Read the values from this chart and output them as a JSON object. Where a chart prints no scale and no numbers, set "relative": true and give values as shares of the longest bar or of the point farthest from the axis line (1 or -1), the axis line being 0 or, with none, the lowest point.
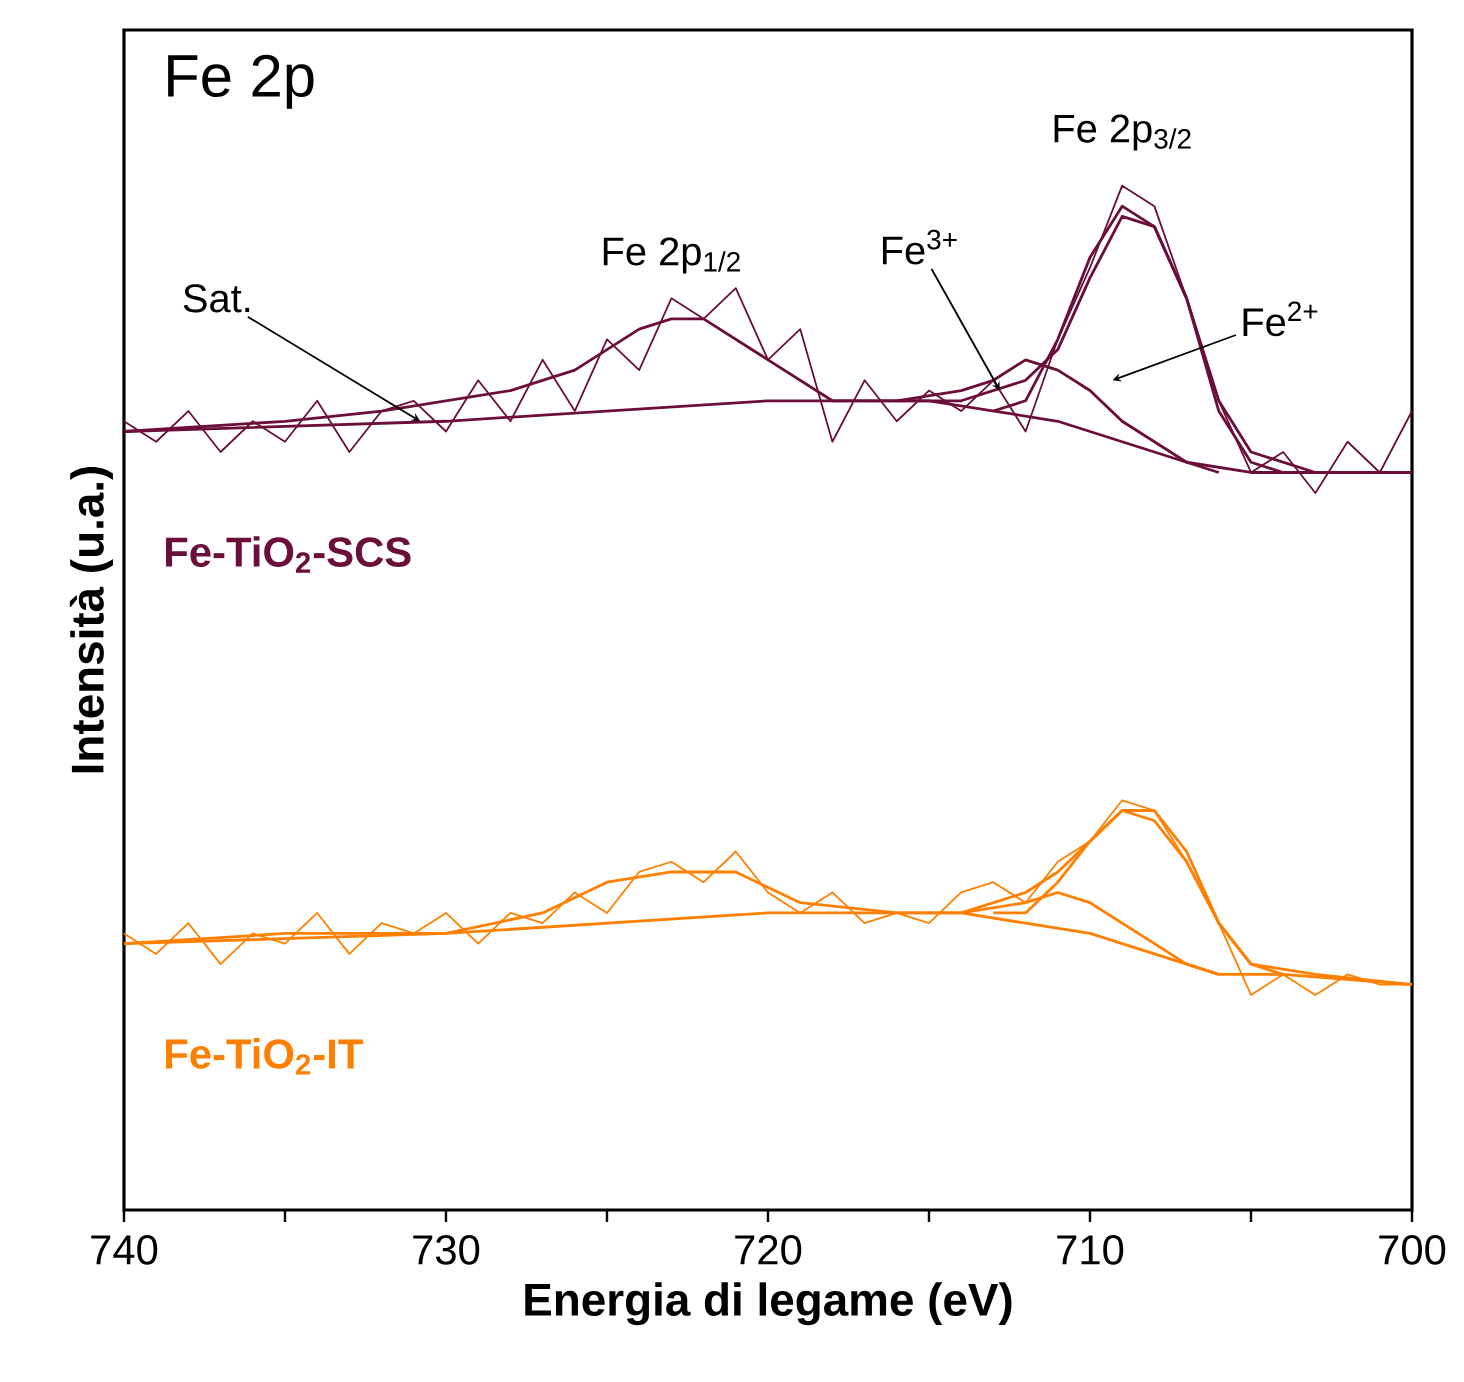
{
  "chart_data": {
    "type": "line",
    "relative": true,
    "xlabel": "Energia di legame (eV)",
    "ylabel": "Intensità (u.a.)",
    "xlim": [
      740,
      700
    ],
    "xticks": [
      740,
      {
        "value": 735,
        "label": null
      },
      730,
      {
        "value": 725,
        "label": null
      },
      720,
      {
        "value": 715,
        "label": null
      },
      710,
      {
        "value": 705,
        "label": null
      },
      700
    ],
    "annotations": [
      "Fe 2p",
      {
        "text": "Sat.",
        "x": 730.8,
        "y": 0.77
      },
      {
        "text": "Fe 2p$_{1/2}$",
        "x": 723,
        "y": 0.89
      },
      {
        "text": "Fe$^{3+}$",
        "x": 712.8,
        "y": 0.8
      },
      {
        "text": "Fe 2p$_{3/2}$",
        "x": 709,
        "y": 1.0
      },
      "Fe$^{2+}$"
    ],
    "series": [
      {
        "name": "Fe-TiO$_{2}$-SCS",
        "color": "#6b0f3a",
        "x": [
          740,
          739,
          738,
          737,
          736,
          735,
          734,
          733,
          732,
          731,
          730,
          729,
          728,
          727,
          726,
          725,
          724,
          723,
          722,
          721,
          720,
          719,
          718,
          717,
          716,
          715,
          714,
          713,
          712,
          711,
          710,
          709,
          708,
          707,
          706,
          705,
          704,
          703,
          702,
          701,
          700
        ],
        "values": [
          0.77,
          0.75,
          0.78,
          0.74,
          0.77,
          0.75,
          0.79,
          0.74,
          0.78,
          0.79,
          0.76,
          0.81,
          0.77,
          0.83,
          0.78,
          0.85,
          0.82,
          0.89,
          0.87,
          0.9,
          0.83,
          0.86,
          0.75,
          0.81,
          0.77,
          0.8,
          0.78,
          0.81,
          0.76,
          0.85,
          0.92,
          1.0,
          0.98,
          0.89,
          0.79,
          0.72,
          0.74,
          0.7,
          0.75,
          0.72,
          0.78
        ]
      },
      {
        "color": "#6b0f3a",
        "x": [
          740,
          735,
          732,
          730,
          728,
          726,
          724,
          723,
          722,
          720,
          718,
          716,
          714,
          712,
          711,
          710,
          709,
          708,
          707,
          706,
          705,
          703,
          700
        ],
        "values": [
          0.76,
          0.77,
          0.78,
          0.79,
          0.8,
          0.82,
          0.86,
          0.87,
          0.87,
          0.83,
          0.79,
          0.79,
          0.79,
          0.81,
          0.84,
          0.91,
          0.97,
          0.96,
          0.89,
          0.79,
          0.74,
          0.72,
          0.72
        ]
      },
      {
        "color": "#6b0f3a",
        "x": [
          740,
          730,
          720,
          715,
          713,
          711,
          709,
          707,
          705,
          700
        ],
        "values": [
          0.76,
          0.77,
          0.79,
          0.79,
          0.78,
          0.77,
          0.75,
          0.73,
          0.72,
          0.72
        ]
      },
      {
        "color": "#6b0f3a",
        "x": [
          716,
          714,
          713,
          712,
          711,
          710,
          709,
          708,
          707,
          706
        ],
        "values": [
          0.79,
          0.8,
          0.81,
          0.83,
          0.82,
          0.8,
          0.77,
          0.75,
          0.73,
          0.72
        ]
      },
      {
        "color": "#6b0f3a",
        "x": [
          713,
          712,
          711,
          710,
          709,
          708,
          707,
          706,
          705,
          704
        ],
        "values": [
          0.78,
          0.79,
          0.85,
          0.93,
          0.98,
          0.96,
          0.89,
          0.78,
          0.73,
          0.72
        ]
      },
      {
        "name": "Fe-TiO$_{2}$-IT",
        "color": "#ff8000",
        "x": [
          740,
          739,
          738,
          737,
          736,
          735,
          734,
          733,
          732,
          731,
          730,
          729,
          728,
          727,
          726,
          725,
          724,
          723,
          722,
          721,
          720,
          719,
          718,
          717,
          716,
          715,
          714,
          713,
          712,
          711,
          710,
          709,
          708,
          707,
          706,
          705,
          704,
          703,
          702,
          701,
          700
        ],
        "values": [
          0.27,
          0.25,
          0.28,
          0.24,
          0.27,
          0.26,
          0.29,
          0.25,
          0.28,
          0.27,
          0.29,
          0.26,
          0.29,
          0.28,
          0.31,
          0.29,
          0.33,
          0.34,
          0.32,
          0.35,
          0.31,
          0.29,
          0.31,
          0.28,
          0.29,
          0.28,
          0.31,
          0.32,
          0.3,
          0.34,
          0.36,
          0.4,
          0.39,
          0.34,
          0.28,
          0.21,
          0.23,
          0.21,
          0.23,
          0.22,
          0.22
        ]
      },
      {
        "color": "#ff8000",
        "x": [
          740,
          735,
          730,
          727,
          725,
          723,
          721,
          719,
          716,
          714,
          712,
          711,
          710,
          709,
          708,
          707,
          706,
          705,
          703,
          700
        ],
        "values": [
          0.26,
          0.27,
          0.27,
          0.29,
          0.32,
          0.33,
          0.33,
          0.3,
          0.29,
          0.29,
          0.31,
          0.33,
          0.36,
          0.39,
          0.39,
          0.35,
          0.28,
          0.24,
          0.23,
          0.22
        ]
      },
      {
        "color": "#ff8000",
        "x": [
          740,
          730,
          720,
          714,
          712,
          710,
          708,
          706,
          704,
          700
        ],
        "values": [
          0.26,
          0.27,
          0.29,
          0.29,
          0.28,
          0.27,
          0.25,
          0.23,
          0.23,
          0.22
        ]
      },
      {
        "color": "#ff8000",
        "x": [
          714,
          712,
          711,
          710,
          709,
          708,
          707,
          706
        ],
        "values": [
          0.29,
          0.3,
          0.31,
          0.3,
          0.28,
          0.26,
          0.24,
          0.23
        ]
      },
      {
        "color": "#ff8000",
        "x": [
          713,
          712,
          711,
          710,
          709,
          708,
          707,
          706,
          705,
          704
        ],
        "values": [
          0.29,
          0.29,
          0.32,
          0.36,
          0.39,
          0.38,
          0.34,
          0.28,
          0.24,
          0.23
        ]
      }
    ]
  }
}
